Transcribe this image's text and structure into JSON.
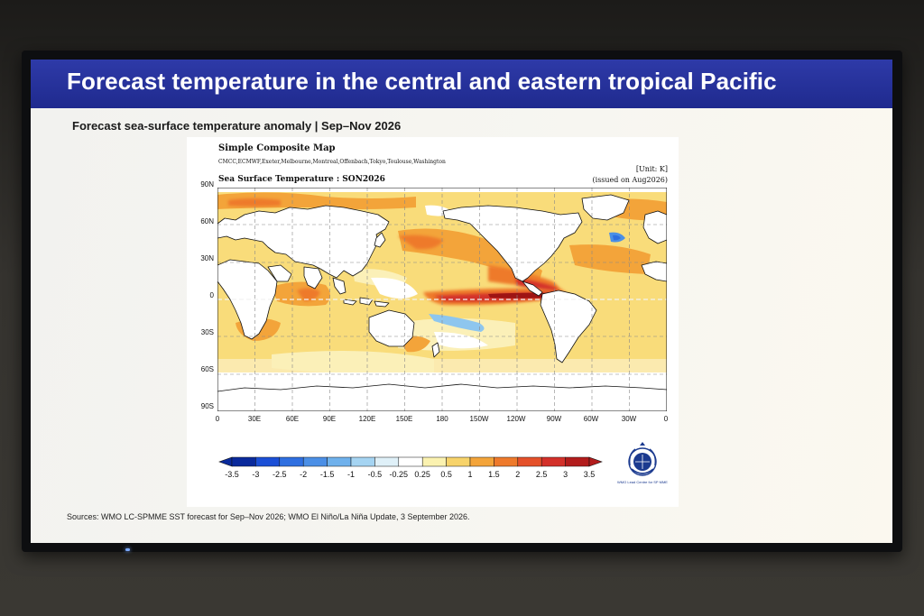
{
  "slide": {
    "title": "Forecast temperature in the central and eastern tropical Pacific",
    "subtitle": "Forecast sea-surface temperature anomaly | Sep–Nov 2026",
    "sources": "Sources: WMO LC-SPMME SST forecast for Sep–Nov 2026; WMO El Niño/La Niña Update, 3 September 2026."
  },
  "figure": {
    "title": "Simple Composite Map",
    "centres": "CMCC,ECMWF,Exeter,Melbourne,Montreal,Offenbach,Tokyo,Toulouse,Washington",
    "unit": "[Unit: K]",
    "issued": "(issued on Aug2026)",
    "map_title": "Sea Surface Temperature : SON2026",
    "lat_labels": [
      "90N",
      "60N",
      "30N",
      "0",
      "30S",
      "60S",
      "90S"
    ],
    "lon_labels": [
      "0",
      "30E",
      "60E",
      "90E",
      "120E",
      "150E",
      "180",
      "150W",
      "120W",
      "90W",
      "60W",
      "30W",
      "0"
    ],
    "colorbar": {
      "ticks": [
        "-3.5",
        "-3",
        "-2.5",
        "-2",
        "-1.5",
        "-1",
        "-0.5",
        "-0.25",
        "0.25",
        "0.5",
        "1",
        "1.5",
        "2",
        "2.5",
        "3",
        "3.5"
      ],
      "colors": [
        "#0a2a9c",
        "#1b4fd6",
        "#2f6fe0",
        "#4b8fe6",
        "#6fb1ec",
        "#a5d4f2",
        "#dff0f8",
        "#ffffff",
        "#fbf2b0",
        "#f7d36a",
        "#f3a43a",
        "#ee7a2c",
        "#e4502a",
        "#d3302a",
        "#b21c1c"
      ]
    },
    "logo_caption": "WMO Lead Centre for SP MME"
  },
  "colors": {
    "title_bar": "#2332a0",
    "warm_strong": "#b21c1c",
    "warm": "#ee7a2c",
    "warm_light": "#f7d36a",
    "cool": "#6fb1ec",
    "land": "#ffffff"
  }
}
